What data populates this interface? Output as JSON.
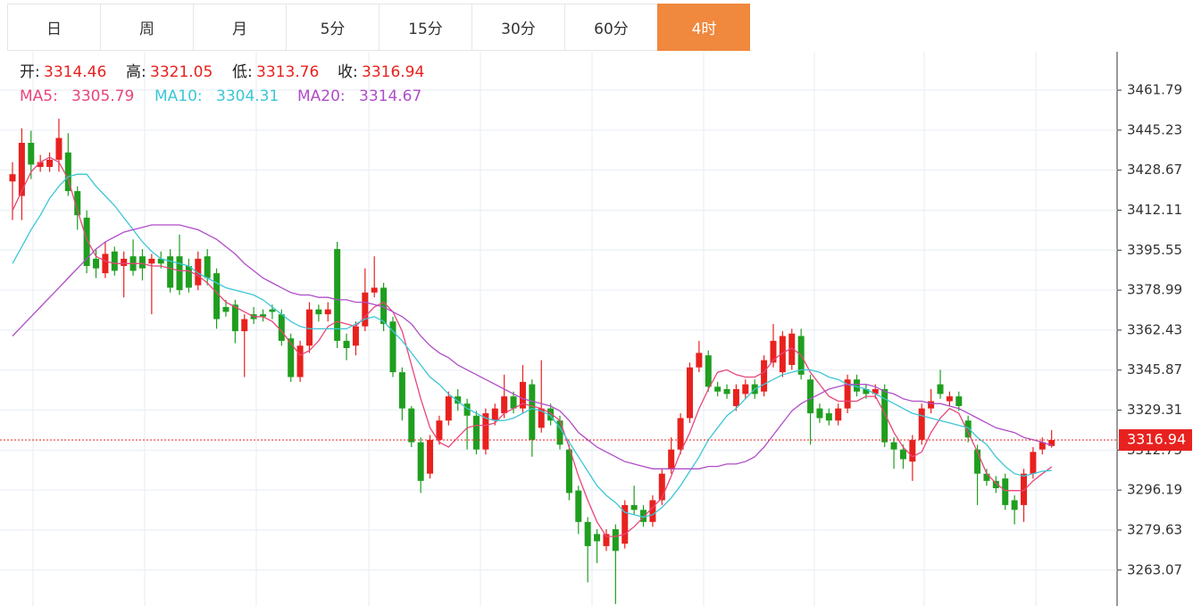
{
  "tabs": {
    "items": [
      "日",
      "周",
      "月",
      "5分",
      "15分",
      "30分",
      "60分",
      "4时"
    ],
    "active": 7
  },
  "chart_data": {
    "type": "candlestick",
    "up_color": "#e8211e",
    "down_color": "#1f9e1f",
    "ohlc_labels": {
      "open": "开:",
      "high": "高:",
      "low": "低:",
      "close": "收:"
    },
    "open": [
      3424,
      3418,
      3440,
      3430,
      3430,
      3433,
      3436,
      3420,
      3409,
      3392,
      3386,
      3395,
      3389,
      3393,
      3393,
      3390,
      3392,
      3393,
      3393,
      3389,
      3381,
      3393,
      3386,
      3372,
      3373,
      3362,
      3369,
      3369,
      3371,
      3369,
      3359,
      3343,
      3356,
      3371,
      3369,
      3396,
      3358,
      3356,
      3364,
      3378,
      3380,
      3366,
      3345,
      3330,
      3316,
      3303,
      3317,
      3325,
      3335,
      3332,
      3327,
      3313,
      3325,
      3328,
      3335,
      3330,
      3340,
      3322,
      3330,
      3325,
      3313,
      3296,
      3283,
      3278,
      3273,
      3280,
      3274,
      3290,
      3288,
      3283,
      3292,
      3305,
      3313,
      3326,
      3347,
      3352,
      3339,
      3338,
      3331,
      3336,
      3340,
      3337,
      3349,
      3345,
      3348,
      3360,
      3342,
      3330,
      3328,
      3325,
      3330,
      3342,
      3338,
      3336,
      3338,
      3316,
      3313,
      3308,
      3317,
      3330,
      3340,
      3333,
      3335,
      3325,
      3313,
      3303,
      3300,
      3301,
      3292,
      3290,
      3303,
      3313,
      3314.46
    ],
    "high": [
      3432,
      3446,
      3445,
      3435,
      3436,
      3450,
      3444,
      3422,
      3412,
      3396,
      3399,
      3397,
      3395,
      3400,
      3396,
      3394,
      3395,
      3396,
      3402,
      3392,
      3395,
      3396,
      3388,
      3375,
      3375,
      3369,
      3372,
      3371,
      3373,
      3371,
      3361,
      3358,
      3374,
      3373,
      3374,
      3399,
      3361,
      3366,
      3388,
      3393,
      3382,
      3368,
      3347,
      3331,
      3318,
      3319,
      3327,
      3337,
      3338,
      3334,
      3329,
      3330,
      3332,
      3344,
      3337,
      3348,
      3342,
      3350,
      3332,
      3327,
      3315,
      3298,
      3285,
      3280,
      3280,
      3282,
      3292,
      3298,
      3290,
      3294,
      3305,
      3318,
      3328,
      3349,
      3358,
      3354,
      3341,
      3340,
      3340,
      3342,
      3342,
      3352,
      3365,
      3362,
      3363,
      3363,
      3344,
      3332,
      3330,
      3332,
      3344,
      3344,
      3340,
      3340,
      3340,
      3318,
      3315,
      3319,
      3332,
      3338,
      3346,
      3337,
      3337,
      3327,
      3315,
      3305,
      3302,
      3303,
      3294,
      3305,
      3314,
      3318,
      3321.05
    ],
    "low": [
      3408,
      3408,
      3425,
      3428,
      3428,
      3428,
      3418,
      3404,
      3386,
      3384,
      3384,
      3385,
      3376,
      3385,
      3383,
      3369,
      3388,
      3378,
      3377,
      3378,
      3379,
      3381,
      3363,
      3368,
      3357,
      3343,
      3365,
      3366,
      3367,
      3356,
      3341,
      3341,
      3353,
      3366,
      3366,
      3355,
      3350,
      3352,
      3362,
      3376,
      3362,
      3343,
      3325,
      3314,
      3295,
      3301,
      3315,
      3323,
      3329,
      3313,
      3311,
      3311,
      3323,
      3326,
      3328,
      3328,
      3310,
      3320,
      3323,
      3313,
      3292,
      3278,
      3258,
      3266,
      3271,
      3249,
      3272,
      3286,
      3281,
      3281,
      3290,
      3303,
      3311,
      3324,
      3345,
      3337,
      3335,
      3334,
      3329,
      3334,
      3334,
      3335,
      3347,
      3343,
      3346,
      3342,
      3315,
      3324,
      3323,
      3323,
      3328,
      3335,
      3334,
      3334,
      3314,
      3305,
      3305,
      3300,
      3315,
      3328,
      3334,
      3331,
      3329,
      3316,
      3290,
      3298,
      3295,
      3288,
      3282,
      3283,
      3301,
      3311,
      3313.76
    ],
    "close": [
      3427,
      3440,
      3431,
      3432,
      3433,
      3442,
      3420,
      3410,
      3389,
      3388,
      3394,
      3387,
      3392,
      3387,
      3388,
      3392,
      3390,
      3380,
      3379,
      3380,
      3392,
      3384,
      3367,
      3370,
      3362,
      3367,
      3367,
      3368,
      3370,
      3358,
      3343,
      3356,
      3371,
      3369,
      3371,
      3358,
      3355,
      3364,
      3378,
      3380,
      3365,
      3345,
      3330,
      3316,
      3300,
      3317,
      3325,
      3335,
      3332,
      3327,
      3313,
      3328,
      3330,
      3335,
      3330,
      3341,
      3317,
      3330,
      3325,
      3315,
      3295,
      3283,
      3273,
      3275,
      3278,
      3271,
      3290,
      3288,
      3283,
      3292,
      3303,
      3313,
      3326,
      3347,
      3353,
      3339,
      3337,
      3336,
      3338,
      3340,
      3336,
      3350,
      3358,
      3360,
      3361,
      3344,
      3328,
      3326,
      3325,
      3330,
      3342,
      3337,
      3336,
      3338,
      3316,
      3313,
      3309,
      3317,
      3330,
      3333,
      3336,
      3335,
      3331,
      3318,
      3303,
      3300,
      3297,
      3290,
      3288,
      3303,
      3312,
      3316,
      3316.94
    ],
    "series": [
      {
        "name": "MA5:",
        "color": "#e8457a",
        "values": [
          3412,
          3420,
          3428,
          3432,
          3434,
          3432,
          3425,
          3412,
          3400,
          3393,
          3391,
          3390,
          3390,
          3390,
          3390,
          3389,
          3389,
          3388,
          3387,
          3387,
          3385,
          3382,
          3378,
          3374,
          3372,
          3370,
          3368,
          3368,
          3366,
          3362,
          3357,
          3352,
          3354,
          3358,
          3364,
          3366,
          3365,
          3364,
          3368,
          3372,
          3374,
          3370,
          3362,
          3348,
          3334,
          3322,
          3316,
          3314,
          3318,
          3322,
          3323,
          3323,
          3324,
          3328,
          3330,
          3332,
          3331,
          3330,
          3328,
          3325,
          3314,
          3302,
          3292,
          3283,
          3277,
          3277,
          3278,
          3281,
          3285,
          3289,
          3293,
          3302,
          3312,
          3320,
          3330,
          3338,
          3345,
          3346,
          3344,
          3343,
          3343,
          3345,
          3350,
          3353,
          3355,
          3352,
          3345,
          3340,
          3335,
          3333,
          3333,
          3333,
          3335,
          3335,
          3328,
          3320,
          3314,
          3310,
          3312,
          3320,
          3326,
          3330,
          3328,
          3320,
          3312,
          3303,
          3299,
          3296,
          3296,
          3296,
          3300,
          3303,
          3305.79
        ]
      },
      {
        "name": "MA10:",
        "color": "#3cc6d6",
        "values": [
          3390,
          3397,
          3404,
          3410,
          3417,
          3422,
          3426,
          3427,
          3427,
          3422,
          3418,
          3414,
          3409,
          3404,
          3399,
          3395,
          3392,
          3391,
          3390,
          3389,
          3386,
          3384,
          3382,
          3380,
          3379,
          3378,
          3377,
          3375,
          3372,
          3369,
          3366,
          3364,
          3363,
          3363,
          3363,
          3363,
          3363,
          3365,
          3367,
          3368,
          3366,
          3362,
          3358,
          3353,
          3348,
          3343,
          3340,
          3336,
          3333,
          3330,
          3328,
          3326,
          3325,
          3325,
          3326,
          3328,
          3330,
          3329,
          3327,
          3322,
          3316,
          3310,
          3304,
          3298,
          3294,
          3291,
          3287,
          3286,
          3285,
          3286,
          3289,
          3293,
          3298,
          3304,
          3310,
          3317,
          3322,
          3327,
          3330,
          3334,
          3338,
          3340,
          3342,
          3344,
          3345,
          3346,
          3346,
          3345,
          3343,
          3342,
          3340,
          3339,
          3338,
          3336,
          3334,
          3332,
          3330,
          3328,
          3327,
          3326,
          3325,
          3324,
          3323,
          3322,
          3318,
          3315,
          3310,
          3306,
          3303,
          3302,
          3303,
          3304,
          3304.31
        ]
      },
      {
        "name": "MA20:",
        "color": "#b04cc8",
        "values": [
          3360,
          3364,
          3368,
          3372,
          3376,
          3380,
          3384,
          3388,
          3392,
          3396,
          3399,
          3401,
          3403,
          3404,
          3405,
          3406,
          3406,
          3406,
          3406,
          3405,
          3404,
          3402,
          3400,
          3397,
          3394,
          3390,
          3387,
          3384,
          3382,
          3380,
          3378,
          3377,
          3377,
          3376,
          3376,
          3375,
          3375,
          3374,
          3374,
          3373,
          3372,
          3370,
          3368,
          3365,
          3360,
          3356,
          3353,
          3351,
          3348,
          3346,
          3344,
          3342,
          3340,
          3338,
          3336,
          3334,
          3333,
          3332,
          3331,
          3329,
          3325,
          3320,
          3317,
          3314,
          3312,
          3310,
          3308,
          3307,
          3306,
          3305,
          3305,
          3305,
          3305,
          3305,
          3305,
          3306,
          3306,
          3307,
          3307,
          3308,
          3310,
          3314,
          3319,
          3324,
          3329,
          3332,
          3334,
          3336,
          3338,
          3339,
          3340,
          3340,
          3340,
          3339,
          3337,
          3336,
          3334,
          3333,
          3333,
          3332,
          3332,
          3331,
          3330,
          3328,
          3326,
          3324,
          3322,
          3321,
          3320,
          3318,
          3317,
          3316,
          3314.67
        ]
      }
    ],
    "ylim": [
      3248.2,
      3477.7
    ],
    "yticks": [
      3263.07,
      3279.63,
      3296.19,
      3312.75,
      3329.31,
      3345.87,
      3362.43,
      3378.99,
      3395.55,
      3412.11,
      3428.67,
      3445.23,
      3461.79
    ],
    "grid": true
  }
}
